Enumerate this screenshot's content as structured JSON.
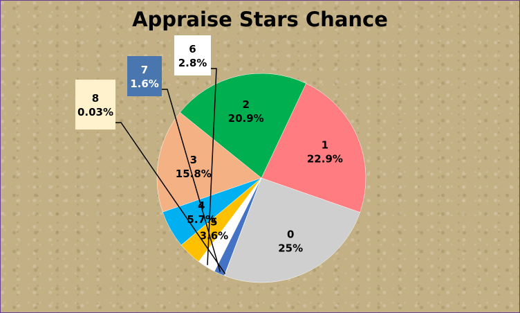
{
  "chart_data": {
    "type": "pie",
    "title": "Appraise Stars Chance",
    "slices": [
      {
        "name": "0",
        "value": 25.0,
        "pct_label": "25%",
        "color": "#cfcfcf"
      },
      {
        "name": "1",
        "value": 22.9,
        "pct_label": "22.9%",
        "color": "#ff7c80"
      },
      {
        "name": "2",
        "value": 20.9,
        "pct_label": "20.9%",
        "color": "#00b050"
      },
      {
        "name": "3",
        "value": 15.8,
        "pct_label": "15.8%",
        "color": "#f4b183"
      },
      {
        "name": "4",
        "value": 5.7,
        "pct_label": "5.7%",
        "color": "#00b0f0"
      },
      {
        "name": "5",
        "value": 3.6,
        "pct_label": "3.6%",
        "color": "#ffc000"
      },
      {
        "name": "6",
        "value": 2.8,
        "pct_label": "2.8%",
        "color": "#ffffff"
      },
      {
        "name": "7",
        "value": 1.6,
        "pct_label": "1.6%",
        "color": "#4472c4"
      },
      {
        "name": "8",
        "value": 0.03,
        "pct_label": "0.03%",
        "color": "#fff2cc"
      }
    ]
  }
}
